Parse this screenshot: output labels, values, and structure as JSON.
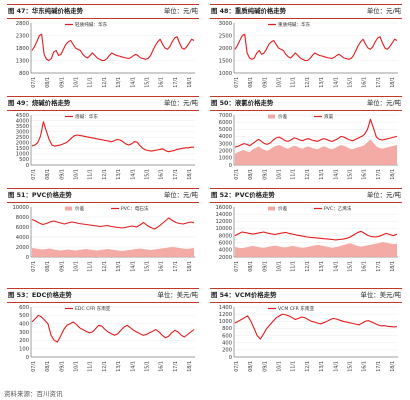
{
  "footer": "资料来源：百川资讯",
  "panels": [
    {
      "caption": "图 47：华东纯碱价格走势",
      "unit": "单位：元/吨"
    },
    {
      "caption": "图 48：重质纯碱价格走势",
      "unit": "单位：元/吨"
    },
    {
      "caption": "图 49：烧碱价格走势",
      "unit": "单位：元/吨"
    },
    {
      "caption": "图 50：液氯价格走势",
      "unit": "单位：元/吨"
    },
    {
      "caption": "图 51：PVC价格走势",
      "unit": "单位：元/吨"
    },
    {
      "caption": "图 52：PVC价格走势",
      "unit": "单位：元/吨"
    },
    {
      "caption": "图 53：EDC价格走势",
      "unit": "单位：美元/吨"
    },
    {
      "caption": "图 54：VCM价格走势",
      "unit": "单位：美元/吨"
    }
  ],
  "chart_data": [
    {
      "type": "line",
      "title": "图 47：华东纯碱价格走势",
      "ylim": [
        800,
        2800
      ],
      "yticks": [
        800,
        1300,
        1800,
        2300,
        2800
      ],
      "x_tick_labels": [
        "07/1",
        "08/1",
        "09/1",
        "10/1",
        "11/1",
        "12/1",
        "13/1",
        "14/1",
        "15/1",
        "16/1",
        "17/1",
        "18/1"
      ],
      "series": [
        {
          "name": "轻质纯碱：华东",
          "color": "#e41a1c",
          "values": [
            1700,
            1850,
            2050,
            2300,
            2350,
            1550,
            1350,
            1300,
            1380,
            1650,
            1700,
            1500,
            1550,
            1750,
            1950,
            2050,
            2100,
            1950,
            1800,
            1750,
            1700,
            1550,
            1450,
            1400,
            1500,
            1600,
            1500,
            1400,
            1350,
            1300,
            1300,
            1380,
            1500,
            1600,
            1550,
            1500,
            1480,
            1450,
            1420,
            1400,
            1380,
            1420,
            1500,
            1550,
            1480,
            1400,
            1380,
            1350,
            1380,
            1500,
            1700,
            1900,
            2050,
            2150,
            1950,
            1800,
            1750,
            1850,
            2050,
            2200,
            2250,
            2000,
            1800,
            1750,
            1850,
            2000,
            2150,
            2100
          ]
        }
      ]
    },
    {
      "type": "line",
      "title": "图 48：重质纯碱价格走势",
      "ylim": [
        1000,
        3000
      ],
      "yticks": [
        1000,
        1500,
        2000,
        2500,
        3000
      ],
      "x_tick_labels": [
        "07/1",
        "08/1",
        "09/1",
        "10/1",
        "11/1",
        "12/1",
        "13/1",
        "14/1",
        "15/1",
        "16/1",
        "17/1",
        "18/1"
      ],
      "series": [
        {
          "name": "重质纯碱：华东",
          "color": "#e41a1c",
          "values": [
            1950,
            2100,
            2300,
            2500,
            2550,
            1800,
            1600,
            1550,
            1600,
            1800,
            1900,
            1750,
            1800,
            1950,
            2150,
            2250,
            2300,
            2150,
            2000,
            1950,
            1900,
            1750,
            1650,
            1600,
            1700,
            1800,
            1700,
            1600,
            1550,
            1500,
            1500,
            1580,
            1700,
            1800,
            1750,
            1700,
            1680,
            1650,
            1620,
            1600,
            1580,
            1620,
            1700,
            1750,
            1680,
            1600,
            1580,
            1550,
            1580,
            1700,
            1900,
            2100,
            2250,
            2350,
            2150,
            2000,
            1950,
            2050,
            2250,
            2400,
            2450,
            2200,
            2000,
            1950,
            2050,
            2200,
            2350,
            2300
          ]
        }
      ]
    },
    {
      "type": "line",
      "title": "图 49：烧碱价格走势",
      "ylim": [
        0,
        4500
      ],
      "yticks": [
        0,
        500,
        1000,
        1500,
        2000,
        2500,
        3000,
        3500,
        4000,
        4500
      ],
      "x_tick_labels": [
        "07/1",
        "08/1",
        "09/1",
        "10/1",
        "11/1",
        "12/1",
        "13/1",
        "14/1",
        "15/1",
        "16/1",
        "17/1",
        "18/1"
      ],
      "series": [
        {
          "name": "烧碱：华东",
          "color": "#e41a1c",
          "values": [
            1700,
            1800,
            2000,
            2600,
            3900,
            3100,
            2300,
            1800,
            1700,
            1750,
            1800,
            1900,
            2000,
            2200,
            2450,
            2650,
            2700,
            2650,
            2600,
            2550,
            2500,
            2450,
            2400,
            2350,
            2300,
            2250,
            2200,
            2150,
            2100,
            2200,
            2300,
            2250,
            2100,
            1900,
            1800,
            1900,
            2100,
            2050,
            1750,
            1500,
            1350,
            1300,
            1250,
            1300,
            1350,
            1400,
            1450,
            1300,
            1200,
            1250,
            1300,
            1400,
            1450,
            1500,
            1550,
            1550,
            1600,
            1600
          ]
        }
      ]
    },
    {
      "type": "area",
      "title": "图 50：液氯价格走势",
      "ylim": [
        0,
        7000
      ],
      "yticks": [
        0,
        1000,
        2000,
        3000,
        4000,
        5000,
        6000,
        7000
      ],
      "x_tick_labels": [
        "07/1",
        "08/1",
        "09/1",
        "10/1",
        "11/1",
        "12/1",
        "13/1",
        "14/1",
        "15/1",
        "16/1",
        "17/1",
        "18/1"
      ],
      "series": [
        {
          "name": "价差",
          "color": "#f4a6a0",
          "kind": "area",
          "values": [
            1600,
            1800,
            2000,
            2100,
            1900,
            1800,
            2200,
            2400,
            2600,
            2300,
            2100,
            2000,
            2200,
            2500,
            2700,
            2800,
            2600,
            2400,
            2300,
            2500,
            2700,
            2600,
            2400,
            2300,
            2500,
            2600,
            2400,
            2300,
            2200,
            2400,
            2600,
            2500,
            2300,
            2200,
            2400,
            2600,
            2800,
            2700,
            2500,
            2300,
            2200,
            2400,
            2500,
            2600,
            2800,
            3200,
            3600,
            3100,
            2600,
            2400,
            2300,
            2400,
            2500,
            2600,
            2700,
            2800
          ]
        },
        {
          "name": "液氯",
          "color": "#e41a1c",
          "kind": "line",
          "values": [
            2500,
            2600,
            2800,
            3000,
            2900,
            2700,
            3000,
            3300,
            3600,
            3300,
            3000,
            2900,
            3100,
            3500,
            3800,
            3900,
            3700,
            3400,
            3300,
            3500,
            3800,
            3700,
            3500,
            3400,
            3600,
            3700,
            3500,
            3400,
            3300,
            3500,
            3700,
            3600,
            3400,
            3300,
            3500,
            3700,
            4000,
            3900,
            3700,
            3500,
            3400,
            3600,
            3800,
            4000,
            4300,
            5000,
            6400,
            5200,
            3900,
            3600,
            3500,
            3600,
            3700,
            3800,
            3900,
            4000
          ]
        }
      ]
    },
    {
      "type": "area",
      "title": "图 51：PVC价格走势",
      "ylim": [
        0,
        10000
      ],
      "yticks": [
        0,
        2000,
        4000,
        6000,
        8000,
        10000
      ],
      "x_tick_labels": [
        "07/1",
        "08/1",
        "09/1",
        "10/1",
        "11/1",
        "12/1",
        "13/1",
        "14/1",
        "15/1",
        "16/1",
        "17/1",
        "18/1"
      ],
      "series": [
        {
          "name": "价差",
          "color": "#f4a6a0",
          "kind": "area",
          "values": [
            1800,
            1700,
            1600,
            1500,
            1600,
            1700,
            1500,
            1400,
            1300,
            1400,
            1500,
            1400,
            1300,
            1400,
            1500,
            1600,
            1500,
            1400,
            1300,
            1400,
            1500,
            1600,
            1500,
            1400,
            1300,
            1200,
            1300,
            1400,
            1500,
            1600,
            1700,
            1600,
            1500,
            1400,
            1500,
            1600,
            1700,
            1800,
            1900,
            2000,
            1900,
            1800,
            1700,
            1600,
            1700,
            1800
          ]
        },
        {
          "name": "PVC：电石法",
          "color": "#e41a1c",
          "kind": "line",
          "values": [
            7500,
            7200,
            6800,
            6500,
            6700,
            7000,
            7200,
            7000,
            6800,
            6600,
            6800,
            7000,
            6900,
            6700,
            6600,
            6500,
            6400,
            6300,
            6200,
            6100,
            6200,
            6300,
            6100,
            6000,
            5900,
            5800,
            5900,
            6100,
            6200,
            6000,
            6400,
            6900,
            6300,
            5900,
            5600,
            6000,
            6600,
            7200,
            7800,
            7300,
            6900,
            6700,
            6600,
            6800,
            7000,
            6900
          ]
        }
      ]
    },
    {
      "type": "area",
      "title": "图 52：PVC价格走势",
      "ylim": [
        2000,
        16000
      ],
      "yticks": [
        2000,
        4000,
        6000,
        8000,
        10000,
        12000,
        14000,
        16000
      ],
      "x_tick_labels": [
        "07/1",
        "08/1",
        "09/1",
        "10/1",
        "11/1",
        "12/1",
        "13/1",
        "14/1",
        "15/1",
        "16/1",
        "17/1",
        "18/1"
      ],
      "series": [
        {
          "name": "价差",
          "color": "#f4a6a0",
          "kind": "area",
          "values": [
            4800,
            4600,
            4500,
            4700,
            4900,
            5100,
            4900,
            4700,
            4600,
            4800,
            5000,
            5200,
            5000,
            4800,
            4700,
            4900,
            5100,
            4900,
            4700,
            4600,
            4800,
            5000,
            5200,
            5400,
            5200,
            5000,
            4800,
            4600,
            4800,
            5000,
            5300,
            5600,
            5900,
            5500,
            5100,
            4900,
            5100,
            5300,
            5500,
            5700,
            5900,
            6200,
            6000,
            5800,
            5600,
            5700
          ]
        },
        {
          "name": "PVC：乙烯法",
          "color": "#e41a1c",
          "kind": "line",
          "values": [
            8000,
            8500,
            9000,
            8800,
            8600,
            8400,
            8600,
            8800,
            9000,
            8700,
            8500,
            8300,
            8500,
            8700,
            8900,
            8600,
            8400,
            8200,
            8000,
            7800,
            7600,
            7500,
            7400,
            7300,
            7200,
            7100,
            7000,
            6900,
            6800,
            6900,
            7000,
            7200,
            7600,
            8200,
            8800,
            9200,
            8600,
            8000,
            7700,
            7600,
            7800,
            8200,
            8600,
            8300,
            8000,
            8400
          ]
        }
      ]
    },
    {
      "type": "line",
      "title": "图 53：EDC价格走势",
      "ylim": [
        0,
        600
      ],
      "yticks": [
        0,
        100,
        200,
        300,
        400,
        500,
        600
      ],
      "x_tick_labels": [
        "07/1",
        "08/1",
        "09/1",
        "10/1",
        "11/1",
        "12/1",
        "13/1",
        "14/1",
        "15/1",
        "16/1",
        "17/1",
        "18/1"
      ],
      "series": [
        {
          "name": "EDC CFR 东南亚",
          "color": "#e41a1c",
          "values": [
            420,
            460,
            500,
            480,
            440,
            400,
            260,
            200,
            180,
            250,
            330,
            380,
            400,
            420,
            390,
            350,
            330,
            310,
            290,
            300,
            340,
            380,
            370,
            330,
            300,
            280,
            260,
            280,
            320,
            360,
            380,
            350,
            320,
            300,
            280,
            260,
            270,
            290,
            310,
            330,
            300,
            260,
            230,
            250,
            290,
            320,
            300,
            260,
            240,
            270,
            300,
            330
          ]
        }
      ]
    },
    {
      "type": "line",
      "title": "图 54：VCM价格走势",
      "ylim": [
        0,
        1400
      ],
      "yticks": [
        0,
        200,
        400,
        600,
        800,
        1000,
        1200,
        1400
      ],
      "x_tick_labels": [
        "07/1",
        "08/1",
        "09/1",
        "10/1",
        "11/1",
        "12/1",
        "13/1",
        "14/1",
        "15/1",
        "16/1",
        "17/1",
        "18/1"
      ],
      "series": [
        {
          "name": "VCM CFR 东南亚",
          "color": "#e41a1c",
          "values": [
            950,
            1000,
            1050,
            1100,
            1150,
            1000,
            800,
            600,
            500,
            650,
            800,
            900,
            1000,
            1100,
            1150,
            1200,
            1180,
            1150,
            1100,
            1050,
            1080,
            1120,
            1100,
            1050,
            1000,
            980,
            950,
            930,
            960,
            1000,
            1050,
            1080,
            1060,
            1030,
            1000,
            980,
            960,
            940,
            920,
            900,
            950,
            1000,
            1020,
            980,
            940,
            900,
            870,
            880,
            860,
            850,
            840,
            850
          ]
        }
      ]
    }
  ]
}
